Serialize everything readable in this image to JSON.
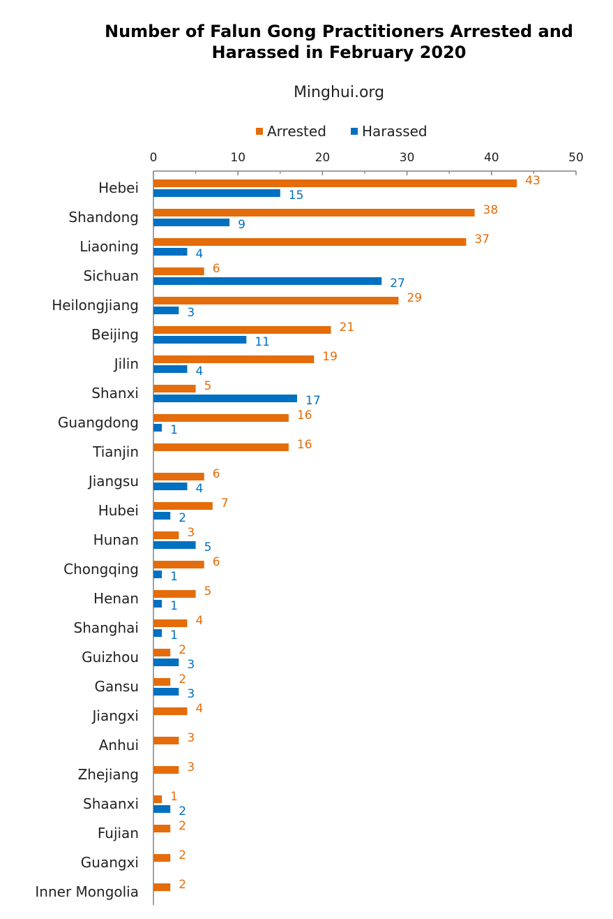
{
  "colors": {
    "arrested": "#E46C0A",
    "harassed": "#0070C0",
    "axis": "#808080",
    "text": "#222222"
  },
  "chart_data": {
    "type": "bar",
    "orientation": "horizontal",
    "title": "Number of Falun Gong Practitioners Arrested and Harassed in February 2020",
    "title_lines": [
      "Number of Falun Gong Practitioners Arrested and",
      "Harassed in February 2020"
    ],
    "subtitle": "Minghui.org",
    "xlim": [
      0,
      50
    ],
    "xticks": [
      0,
      10,
      20,
      30,
      40,
      50
    ],
    "legend_position": "top",
    "categories": [
      "Hebei",
      "Shandong",
      "Liaoning",
      "Sichuan",
      "Heilongjiang",
      "Beijing",
      "Jilin",
      "Shanxi",
      "Guangdong",
      "Tianjin",
      "Jiangsu",
      "Hubei",
      "Hunan",
      "Chongqing",
      "Henan",
      "Shanghai",
      "Guizhou",
      "Gansu",
      "Jiangxi",
      "Anhui",
      "Zhejiang",
      "Shaanxi",
      "Fujian",
      "Guangxi",
      "Inner Mongolia"
    ],
    "series": [
      {
        "name": "Arrested",
        "values": [
          43,
          38,
          37,
          6,
          29,
          21,
          19,
          5,
          16,
          16,
          6,
          7,
          3,
          6,
          5,
          4,
          2,
          2,
          4,
          3,
          3,
          1,
          2,
          2,
          2
        ]
      },
      {
        "name": "Harassed",
        "values": [
          15,
          9,
          4,
          27,
          3,
          11,
          4,
          17,
          1,
          null,
          4,
          2,
          5,
          1,
          1,
          1,
          3,
          3,
          null,
          null,
          null,
          2,
          null,
          null,
          null
        ]
      }
    ]
  }
}
